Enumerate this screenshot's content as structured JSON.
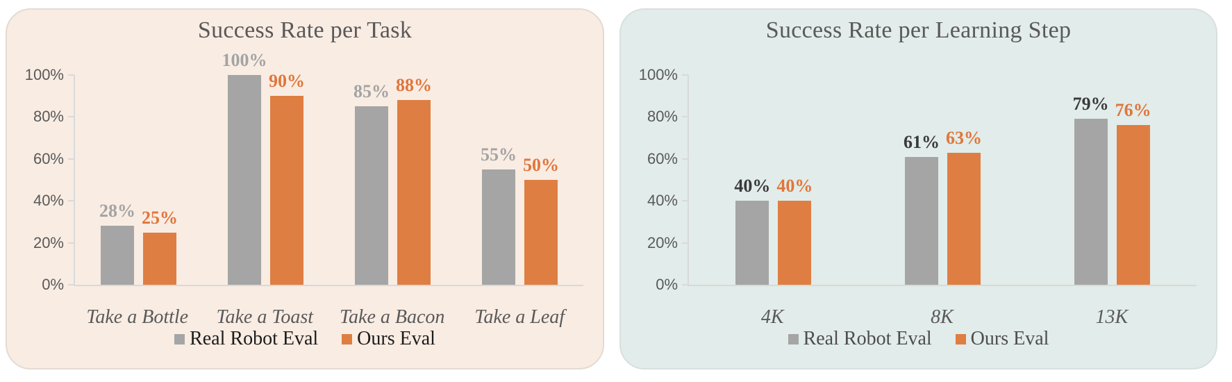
{
  "page": {
    "background": "#ffffff"
  },
  "chart_data": [
    {
      "type": "bar",
      "title": "Success Rate per Task",
      "categories": [
        "Take a Bottle",
        "Take a Toast",
        "Take a Bacon",
        "Take a Leaf"
      ],
      "series": [
        {
          "name": "Real Robot Eval",
          "values": [
            28,
            100,
            85,
            55
          ],
          "labels": [
            "28%",
            "100%",
            "85%",
            "55%"
          ],
          "bar_color": "#a5a5a5",
          "label_color": "#a3a3a3"
        },
        {
          "name": "Ours Eval",
          "values": [
            25,
            90,
            88,
            50
          ],
          "labels": [
            "25%",
            "90%",
            "88%",
            "50%"
          ],
          "bar_color": "#df7e42",
          "label_color": "#e0763a"
        }
      ],
      "y_ticks": [
        {
          "label": "100%",
          "value": 100
        },
        {
          "label": "80%",
          "value": 80
        },
        {
          "label": "60%",
          "value": 60
        },
        {
          "label": "40%",
          "value": 40
        },
        {
          "label": "20%",
          "value": 20
        },
        {
          "label": "0%",
          "value": 0
        }
      ],
      "ylim": [
        0,
        100
      ],
      "grid": false,
      "legend_position": "bottom",
      "style": {
        "panel_bg": "#f9ece3",
        "panel_border": "#e3dbd3",
        "axis_color": "#d9d9d9",
        "tick_label_color": "#595959",
        "title_color": "#595959",
        "category_color": "#595959",
        "legend_text_color": "#1c1c1c"
      }
    },
    {
      "type": "bar",
      "title": "Success Rate per Learning Step",
      "categories": [
        "4K",
        "8K",
        "13K"
      ],
      "series": [
        {
          "name": "Real Robot Eval",
          "values": [
            40,
            61,
            79
          ],
          "labels": [
            "40%",
            "61%",
            "79%"
          ],
          "bar_color": "#a5a5a5",
          "label_color": "#3a3a3a"
        },
        {
          "name": "Ours Eval",
          "values": [
            40,
            63,
            76
          ],
          "labels": [
            "40%",
            "63%",
            "76%"
          ],
          "bar_color": "#df7e42",
          "label_color": "#e0763a"
        }
      ],
      "y_ticks": [
        {
          "label": "100%",
          "value": 100
        },
        {
          "label": "80%",
          "value": 80
        },
        {
          "label": "60%",
          "value": 60
        },
        {
          "label": "40%",
          "value": 40
        },
        {
          "label": "20%",
          "value": 20
        },
        {
          "label": "0%",
          "value": 0
        }
      ],
      "ylim": [
        0,
        100
      ],
      "grid": false,
      "legend_position": "bottom",
      "style": {
        "panel_bg": "#e2ecea",
        "panel_border": "#d8e0de",
        "axis_color": "#d9d9d9",
        "tick_label_color": "#595959",
        "title_color": "#595959",
        "category_color": "#595959",
        "legend_text_color": "#4d4d4d"
      }
    }
  ]
}
